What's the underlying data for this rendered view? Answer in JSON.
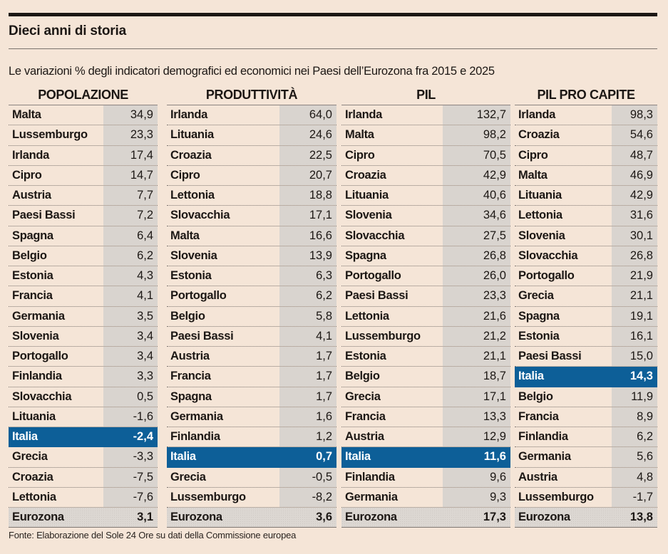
{
  "header": {
    "title": "Dieci anni di storia",
    "subtitle": "Le variazioni % degli indicatori demografici ed economici nei Paesi dell’Eurozona fra 2015 e 2025"
  },
  "colors": {
    "background": "#f5e5d7",
    "value_cell": "#d9d4cf",
    "highlight": "#0d5f98",
    "text": "#1c1714"
  },
  "highlight_country": "Italia",
  "tables": [
    {
      "title": "POPOLAZIONE",
      "rows": [
        {
          "name": "Malta",
          "value": "34,9"
        },
        {
          "name": "Lussemburgo",
          "value": "23,3"
        },
        {
          "name": "Irlanda",
          "value": "17,4"
        },
        {
          "name": "Cipro",
          "value": "14,7"
        },
        {
          "name": "Austria",
          "value": "7,7"
        },
        {
          "name": "Paesi Bassi",
          "value": "7,2"
        },
        {
          "name": "Spagna",
          "value": "6,4"
        },
        {
          "name": "Belgio",
          "value": "6,2"
        },
        {
          "name": "Estonia",
          "value": "4,3"
        },
        {
          "name": "Francia",
          "value": "4,1"
        },
        {
          "name": "Germania",
          "value": "3,5"
        },
        {
          "name": "Slovenia",
          "value": "3,4"
        },
        {
          "name": "Portogallo",
          "value": "3,4"
        },
        {
          "name": "Finlandia",
          "value": "3,3"
        },
        {
          "name": "Slovacchia",
          "value": "0,5"
        },
        {
          "name": "Lituania",
          "value": "-1,6"
        },
        {
          "name": "Italia",
          "value": "-2,4"
        },
        {
          "name": "Grecia",
          "value": "-3,3"
        },
        {
          "name": "Croazia",
          "value": "-7,5"
        },
        {
          "name": "Lettonia",
          "value": "-7,6"
        }
      ],
      "total": {
        "name": "Eurozona",
        "value": "3,1"
      }
    },
    {
      "title": "PRODUTTIVITÀ",
      "rows": [
        {
          "name": "Irlanda",
          "value": "64,0"
        },
        {
          "name": "Lituania",
          "value": "24,6"
        },
        {
          "name": "Croazia",
          "value": "22,5"
        },
        {
          "name": "Cipro",
          "value": "20,7"
        },
        {
          "name": "Lettonia",
          "value": "18,8"
        },
        {
          "name": "Slovacchia",
          "value": "17,1"
        },
        {
          "name": "Malta",
          "value": "16,6"
        },
        {
          "name": "Slovenia",
          "value": "13,9"
        },
        {
          "name": "Estonia",
          "value": "6,3"
        },
        {
          "name": "Portogallo",
          "value": "6,2"
        },
        {
          "name": "Belgio",
          "value": "5,8"
        },
        {
          "name": "Paesi Bassi",
          "value": "4,1"
        },
        {
          "name": "Austria",
          "value": "1,7"
        },
        {
          "name": "Francia",
          "value": "1,7"
        },
        {
          "name": "Spagna",
          "value": "1,7"
        },
        {
          "name": "Germania",
          "value": "1,6"
        },
        {
          "name": "Finlandia",
          "value": "1,2"
        },
        {
          "name": "Italia",
          "value": "0,7"
        },
        {
          "name": "Grecia",
          "value": "-0,5"
        },
        {
          "name": "Lussemburgo",
          "value": "-8,2"
        }
      ],
      "total": {
        "name": "Eurozona",
        "value": "3,6"
      }
    },
    {
      "title": "PIL",
      "rows": [
        {
          "name": "Irlanda",
          "value": "132,7"
        },
        {
          "name": "Malta",
          "value": "98,2"
        },
        {
          "name": "Cipro",
          "value": "70,5"
        },
        {
          "name": "Croazia",
          "value": "42,9"
        },
        {
          "name": "Lituania",
          "value": "40,6"
        },
        {
          "name": "Slovenia",
          "value": "34,6"
        },
        {
          "name": "Slovacchia",
          "value": "27,5"
        },
        {
          "name": "Spagna",
          "value": "26,8"
        },
        {
          "name": "Portogallo",
          "value": "26,0"
        },
        {
          "name": "Paesi Bassi",
          "value": "23,3"
        },
        {
          "name": "Lettonia",
          "value": "21,6"
        },
        {
          "name": "Lussemburgo",
          "value": "21,2"
        },
        {
          "name": "Estonia",
          "value": "21,1"
        },
        {
          "name": "Belgio",
          "value": "18,7"
        },
        {
          "name": "Grecia",
          "value": "17,1"
        },
        {
          "name": "Francia",
          "value": "13,3"
        },
        {
          "name": "Austria",
          "value": "12,9"
        },
        {
          "name": "Italia",
          "value": "11,6"
        },
        {
          "name": "Finlandia",
          "value": "9,6"
        },
        {
          "name": "Germania",
          "value": "9,3"
        }
      ],
      "total": {
        "name": "Eurozona",
        "value": "17,3"
      }
    },
    {
      "title": "PIL PRO CAPITE",
      "rows": [
        {
          "name": "Irlanda",
          "value": "98,3"
        },
        {
          "name": "Croazia",
          "value": "54,6"
        },
        {
          "name": "Cipro",
          "value": "48,7"
        },
        {
          "name": "Malta",
          "value": "46,9"
        },
        {
          "name": "Lituania",
          "value": "42,9"
        },
        {
          "name": "Lettonia",
          "value": "31,6"
        },
        {
          "name": "Slovenia",
          "value": "30,1"
        },
        {
          "name": "Slovacchia",
          "value": "26,8"
        },
        {
          "name": "Portogallo",
          "value": "21,9"
        },
        {
          "name": "Grecia",
          "value": "21,1"
        },
        {
          "name": "Spagna",
          "value": "19,1"
        },
        {
          "name": "Estonia",
          "value": "16,1"
        },
        {
          "name": "Paesi Bassi",
          "value": "15,0"
        },
        {
          "name": "Italia",
          "value": "14,3"
        },
        {
          "name": "Belgio",
          "value": "11,9"
        },
        {
          "name": "Francia",
          "value": "8,9"
        },
        {
          "name": "Finlandia",
          "value": "6,2"
        },
        {
          "name": "Germania",
          "value": "5,6"
        },
        {
          "name": "Austria",
          "value": "4,8"
        },
        {
          "name": "Lussemburgo",
          "value": "-1,7"
        }
      ],
      "total": {
        "name": "Eurozona",
        "value": "13,8"
      }
    }
  ],
  "source": "Fonte: Elaborazione del Sole 24 Ore su dati della Commissione europea"
}
